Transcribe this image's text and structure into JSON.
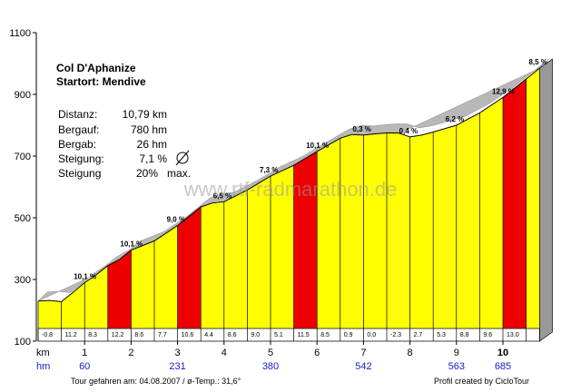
{
  "chart_data": {
    "type": "area",
    "title": "Col D'Aphanize",
    "subtitle": "Startort: Mendive",
    "ylim": [
      100,
      1100
    ],
    "y_ticks": [
      "1100",
      "900",
      "700",
      "500",
      "300",
      "100"
    ],
    "x_row_label": "km",
    "hm_row_label": "hm",
    "km_ticks": [
      {
        "km": 1,
        "label": "1"
      },
      {
        "km": 2,
        "label": "2"
      },
      {
        "km": 3,
        "label": "3"
      },
      {
        "km": 4,
        "label": "4"
      },
      {
        "km": 5,
        "label": "5"
      },
      {
        "km": 6,
        "label": "6"
      },
      {
        "km": 7,
        "label": "7"
      },
      {
        "km": 8,
        "label": "8"
      },
      {
        "km": 9,
        "label": "9"
      },
      {
        "km": 10,
        "label": "10"
      }
    ],
    "hm_labels": [
      {
        "km": 1,
        "label": "60"
      },
      {
        "km": 3,
        "label": "231"
      },
      {
        "km": 5,
        "label": "380"
      },
      {
        "km": 7,
        "label": "542"
      },
      {
        "km": 9,
        "label": "563"
      },
      {
        "km": 10,
        "label": "685"
      }
    ],
    "profile": [
      {
        "km": 0.0,
        "elev": 230
      },
      {
        "km": 0.25,
        "elev": 232
      },
      {
        "km": 0.5,
        "elev": 228
      },
      {
        "km": 0.75,
        "elev": 258
      },
      {
        "km": 1.0,
        "elev": 290
      },
      {
        "km": 1.25,
        "elev": 315
      },
      {
        "km": 1.5,
        "elev": 345
      },
      {
        "km": 1.75,
        "elev": 365
      },
      {
        "km": 2.0,
        "elev": 395
      },
      {
        "km": 2.5,
        "elev": 425
      },
      {
        "km": 3.0,
        "elev": 475
      },
      {
        "km": 3.25,
        "elev": 505
      },
      {
        "km": 3.5,
        "elev": 535
      },
      {
        "km": 3.75,
        "elev": 548
      },
      {
        "km": 4.0,
        "elev": 552
      },
      {
        "km": 4.5,
        "elev": 590
      },
      {
        "km": 5.0,
        "elev": 635
      },
      {
        "km": 5.5,
        "elev": 670
      },
      {
        "km": 6.0,
        "elev": 715
      },
      {
        "km": 6.5,
        "elev": 758
      },
      {
        "km": 6.75,
        "elev": 770
      },
      {
        "km": 7.0,
        "elev": 768
      },
      {
        "km": 7.25,
        "elev": 772
      },
      {
        "km": 7.5,
        "elev": 775
      },
      {
        "km": 7.75,
        "elev": 775
      },
      {
        "km": 8.0,
        "elev": 762
      },
      {
        "km": 8.25,
        "elev": 768
      },
      {
        "km": 8.5,
        "elev": 778
      },
      {
        "km": 9.0,
        "elev": 800
      },
      {
        "km": 9.5,
        "elev": 840
      },
      {
        "km": 10.0,
        "elev": 890
      },
      {
        "km": 10.5,
        "elev": 950
      },
      {
        "km": 10.79,
        "elev": 985
      }
    ],
    "segments": [
      {
        "from": 0,
        "to": 0.5,
        "grade": "-0.8",
        "color": "#ffff00",
        "label": "",
        "label_km": null
      },
      {
        "from": 0.5,
        "to": 1,
        "grade": "11.2",
        "color": "#ffff00",
        "label": "10,1 %",
        "label_km": 1.0
      },
      {
        "from": 1,
        "to": 1.5,
        "grade": "8.3",
        "color": "#ffff00",
        "label": "",
        "label_km": null
      },
      {
        "from": 1.5,
        "to": 2,
        "grade": "12.2",
        "color": "#ee0000",
        "label": "10,1 %",
        "label_km": 2.0
      },
      {
        "from": 2,
        "to": 2.5,
        "grade": "8.6",
        "color": "#ffff00",
        "label": "",
        "label_km": null
      },
      {
        "from": 2.5,
        "to": 3,
        "grade": "7.7",
        "color": "#ffff00",
        "label": "",
        "label_km": null
      },
      {
        "from": 3,
        "to": 3.5,
        "grade": "10.6",
        "color": "#ee0000",
        "label": "9,0 %",
        "label_km": 3.0
      },
      {
        "from": 3.5,
        "to": 4,
        "grade": "4.4",
        "color": "#ffff00",
        "label": "6,5 %",
        "label_km": 4.0
      },
      {
        "from": 4,
        "to": 4.5,
        "grade": "8.6",
        "color": "#ffff00",
        "label": "",
        "label_km": null
      },
      {
        "from": 4.5,
        "to": 5,
        "grade": "9.0",
        "color": "#ffff00",
        "label": "7,3 %",
        "label_km": 5.0
      },
      {
        "from": 5,
        "to": 5.5,
        "grade": "5.1",
        "color": "#ffff00",
        "label": "",
        "label_km": null
      },
      {
        "from": 5.5,
        "to": 6,
        "grade": "11.5",
        "color": "#ee0000",
        "label": "10,1 %",
        "label_km": 6.0
      },
      {
        "from": 6,
        "to": 6.5,
        "grade": "8.5",
        "color": "#ffff00",
        "label": "",
        "label_km": null
      },
      {
        "from": 6.5,
        "to": 7,
        "grade": "0.9",
        "color": "#ffff00",
        "label": "0,3 %",
        "label_km": 7.0
      },
      {
        "from": 7,
        "to": 7.5,
        "grade": "0.0",
        "color": "#ffff00",
        "label": "",
        "label_km": null
      },
      {
        "from": 7.5,
        "to": 8,
        "grade": "-2.3",
        "color": "#ffff00",
        "label": "0,4 %",
        "label_km": 8.0
      },
      {
        "from": 8,
        "to": 8.5,
        "grade": "2.7",
        "color": "#ffff00",
        "label": "",
        "label_km": null
      },
      {
        "from": 8.5,
        "to": 9,
        "grade": "5.3",
        "color": "#ffff00",
        "label": "6,2 %",
        "label_km": 9.0
      },
      {
        "from": 9,
        "to": 9.5,
        "grade": "8.8",
        "color": "#ffff00",
        "label": "",
        "label_km": null
      },
      {
        "from": 9.5,
        "to": 10,
        "grade": "9.6",
        "color": "#ffff00",
        "label": "12,9 %",
        "label_km": 10.0
      },
      {
        "from": 10,
        "to": 10.5,
        "grade": "13.0",
        "color": "#ee0000",
        "label": "",
        "label_km": null
      },
      {
        "from": 10.5,
        "to": 10.79,
        "grade": "",
        "color": "#ffff00",
        "label": "8,5 %",
        "label_km": 10.79
      }
    ],
    "stats": [
      {
        "label": "Distanz:",
        "value": "10,79 km"
      },
      {
        "label": "Bergauf:",
        "value": "780 hm"
      },
      {
        "label": "Bergab:",
        "value": "26 hm"
      },
      {
        "label": "Steigung:",
        "value": "7,1 %"
      },
      {
        "label": "Steigung",
        "value": "20%   max."
      }
    ],
    "watermark": "www.rtf-radmarathon.de",
    "footer_left": "Tour gefahren am: 04.08.2007  / ø-Temp.: 31,6°",
    "footer_right": "Profil created by CicloTour",
    "colors": {
      "steep": "#ee0000",
      "normal": "#ffff00",
      "side": "#999999",
      "hm": "#1a1acc",
      "shadow": "#b8b8b8"
    }
  }
}
